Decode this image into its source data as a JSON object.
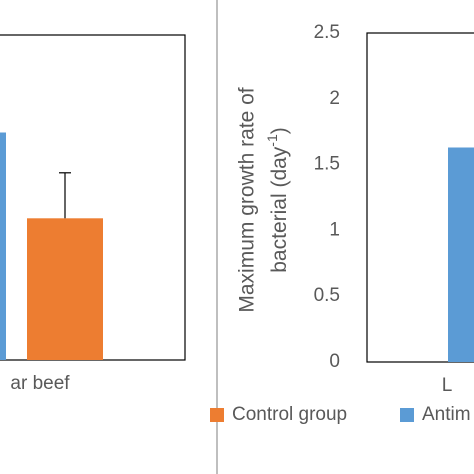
{
  "chart_data": [
    {
      "type": "bar",
      "categories": [
        "ar beef"
      ],
      "ylim": [
        0,
        2.5
      ],
      "series": [
        {
          "color": "#5b9bd5",
          "values": [
            1.75
          ]
        },
        {
          "name": "Control group",
          "color": "#ed7d31",
          "values": [
            1.09
          ],
          "errors": [
            0.35
          ]
        }
      ]
    },
    {
      "type": "bar",
      "categories": [
        "L"
      ],
      "ylim": [
        0,
        2.5
      ],
      "yticks": [
        0,
        0.5,
        1,
        1.5,
        2,
        2.5
      ],
      "y_label": {
        "line1": "Maximum growth rate of",
        "line2": "bacterial (day",
        "sup": "-1",
        "end": ")"
      },
      "series": [
        {
          "name": "Antim",
          "color": "#5b9bd5",
          "values": [
            1.63
          ]
        }
      ]
    }
  ]
}
